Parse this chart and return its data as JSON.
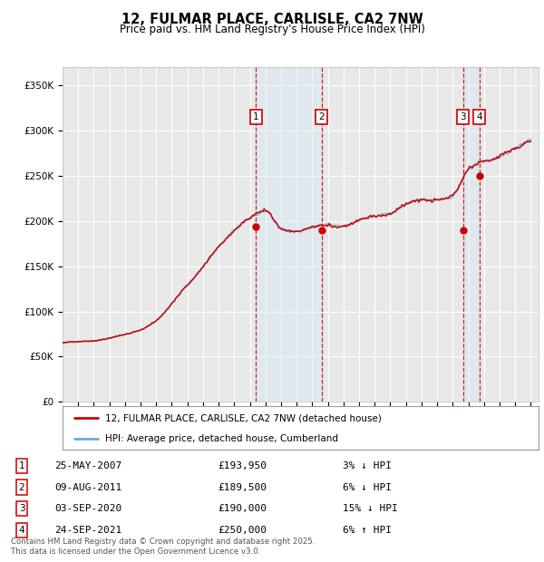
{
  "title": "12, FULMAR PLACE, CARLISLE, CA2 7NW",
  "subtitle": "Price paid vs. HM Land Registry's House Price Index (HPI)",
  "ylabel_ticks": [
    "£0",
    "£50K",
    "£100K",
    "£150K",
    "£200K",
    "£250K",
    "£300K",
    "£350K"
  ],
  "ylim": [
    0,
    370000
  ],
  "xlim_start": 1995.0,
  "xlim_end": 2025.5,
  "background_color": "#ffffff",
  "plot_bg_color": "#e8e8e8",
  "grid_color": "#ffffff",
  "hpi_color": "#6aaed6",
  "price_color": "#cc0000",
  "shade_color": "#d0e8f5",
  "dashed_color": "#cc0000",
  "sales": [
    {
      "num": 1,
      "date": "25-MAY-2007",
      "price": 193950,
      "x": 2007.38,
      "pct": "3%",
      "dir": "↓"
    },
    {
      "num": 2,
      "date": "09-AUG-2011",
      "price": 189500,
      "x": 2011.6,
      "pct": "6%",
      "dir": "↓"
    },
    {
      "num": 3,
      "date": "03-SEP-2020",
      "price": 190000,
      "x": 2020.67,
      "pct": "15%",
      "dir": "↓"
    },
    {
      "num": 4,
      "date": "24-SEP-2021",
      "price": 250000,
      "x": 2021.72,
      "pct": "6%",
      "dir": "↑"
    }
  ],
  "legend_line1": "12, FULMAR PLACE, CARLISLE, CA2 7NW (detached house)",
  "legend_line2": "HPI: Average price, detached house, Cumberland",
  "footnote": "Contains HM Land Registry data © Crown copyright and database right 2025.\nThis data is licensed under the Open Government Licence v3.0.",
  "table_rows": [
    {
      "num": 1,
      "date": "25-MAY-2007",
      "price": "£193,950",
      "pct": "3% ↓ HPI"
    },
    {
      "num": 2,
      "date": "09-AUG-2011",
      "price": "£189,500",
      "pct": "6% ↓ HPI"
    },
    {
      "num": 3,
      "date": "03-SEP-2020",
      "price": "£190,000",
      "pct": "15% ↓ HPI"
    },
    {
      "num": 4,
      "date": "24-SEP-2021",
      "price": "£250,000",
      "pct": "6% ↑ HPI"
    }
  ]
}
